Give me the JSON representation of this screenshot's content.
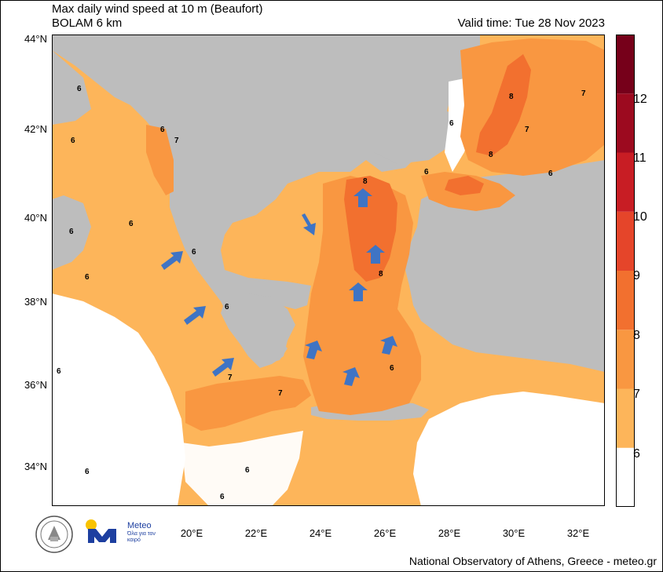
{
  "header": {
    "title": "Max daily wind speed at 10 m (Beaufort)",
    "model": "BOLAM 6 km",
    "valid_time": "Valid time: Tue 28 Nov 2023"
  },
  "footer": {
    "credit": "National Observatory of Athens, Greece - meteo.gr",
    "meteo_brand": "Meteo",
    "meteo_tagline": "Όλα για τον καιρό"
  },
  "axes": {
    "lat_labels": [
      "44°N",
      "42°N",
      "40°N",
      "38°N",
      "36°N",
      "34°N"
    ],
    "lon_labels": [
      "20°E",
      "22°E",
      "24°E",
      "26°E",
      "28°E",
      "30°E",
      "32°E"
    ]
  },
  "colorbar": {
    "levels": [
      "6",
      "7",
      "8",
      "9",
      "10",
      "11",
      "12"
    ],
    "colors": [
      "#ffffff",
      "#fdb55a",
      "#f99741",
      "#f2702f",
      "#e5452a",
      "#c81d24",
      "#9c0a1f",
      "#76001a"
    ]
  },
  "map_colors": {
    "land": "#bdbdbd",
    "sea_low": "#ffffff",
    "bf6": "#fdb55a",
    "bf7": "#f99741",
    "bf8": "#f2702f",
    "arrow": "#3f74c4"
  },
  "contour_labels": [
    "6",
    "6",
    "6",
    "6",
    "6",
    "6",
    "6",
    "6",
    "6",
    "6",
    "6",
    "6",
    "7",
    "7",
    "7",
    "7",
    "7",
    "8",
    "8",
    "8",
    "8",
    "6",
    "6",
    "6",
    "6"
  ]
}
